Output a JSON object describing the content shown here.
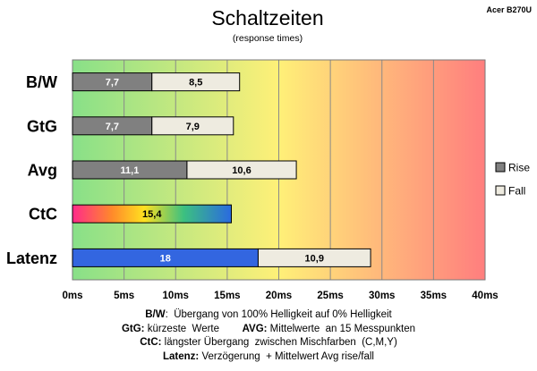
{
  "chart_data": {
    "type": "bar",
    "title": "Schaltzeiten",
    "subtitle": "(response times)",
    "model": "Acer B270U",
    "categories": [
      "B/W",
      "GtG",
      "Avg",
      "CtC",
      "Latenz"
    ],
    "series": [
      {
        "name": "Rise",
        "values": [
          7.7,
          7.7,
          11.1,
          15.4,
          18
        ]
      },
      {
        "name": "Fall",
        "values": [
          8.5,
          7.9,
          10.6,
          null,
          10.9
        ]
      }
    ],
    "bar_labels": [
      [
        "7,7",
        "8,5"
      ],
      [
        "7,7",
        "7,9"
      ],
      [
        "11,1",
        "10,6"
      ],
      [
        "15,4",
        ""
      ],
      [
        "18",
        "10,9"
      ]
    ],
    "stacked": true,
    "orientation": "horizontal",
    "xlim": [
      0,
      40
    ],
    "xticks": [
      "0ms",
      "5ms",
      "10ms",
      "15ms",
      "20ms",
      "25ms",
      "30ms",
      "35ms",
      "40ms"
    ],
    "grid": true,
    "legend": "right",
    "colors": {
      "rise": "#808080",
      "fall": "#eeebe0",
      "latenz": "#3366e0",
      "bg_left": "#88e088",
      "bg_mid": "#fff078",
      "bg_right": "#ff7e7e"
    }
  },
  "footnotes": [
    {
      "parts": [
        {
          "b": "B/W"
        },
        {
          "t": ":  Übergang von 100% Helligkeit auf 0% Helligkeit"
        }
      ]
    },
    {
      "parts": [
        {
          "b": "GtG:"
        },
        {
          "t": " kürzeste  Werte        "
        },
        {
          "b": "AVG:"
        },
        {
          "t": " Mittelwerte  an 15 Messpunkten"
        }
      ]
    },
    {
      "parts": [
        {
          "b": "CtC:"
        },
        {
          "t": " längster Übergang  zwischen Mischfarben  (C,M,Y)"
        }
      ]
    },
    {
      "parts": [
        {
          "b": "Latenz:"
        },
        {
          "t": " Verzögerung  + Mittelwert Avg rise/fall"
        }
      ]
    }
  ]
}
